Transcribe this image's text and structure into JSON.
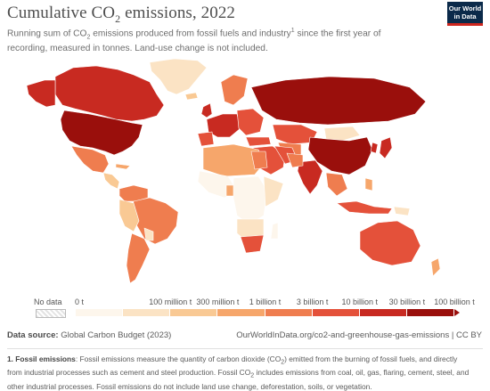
{
  "header": {
    "title_main": "Cumulative CO",
    "title_sub": "2",
    "title_rest": " emissions, 2022",
    "subtitle_a": "Running sum of CO",
    "subtitle_sub": "2",
    "subtitle_b": " emissions produced from fossil fuels and industry",
    "subtitle_sup": "1",
    "subtitle_c": " since the first year of recording, measured in tonnes. Land-use change is not included."
  },
  "logo": {
    "line1": "Our World",
    "line2": "in Data"
  },
  "legend": {
    "no_data_label": "No data",
    "ticks": [
      {
        "label": "0 t",
        "position": 0
      },
      {
        "label": "100 million t",
        "position": 1
      },
      {
        "label": "300 million t",
        "position": 2
      },
      {
        "label": "1 billion t",
        "position": 3
      },
      {
        "label": "3 billion t",
        "position": 4
      },
      {
        "label": "10 billion t",
        "position": 5
      },
      {
        "label": "30 billion t",
        "position": 6
      },
      {
        "label": "100 billion t",
        "position": 7
      }
    ],
    "colors": [
      "#fdf6ec",
      "#fbe3c4",
      "#f9c994",
      "#f6a66b",
      "#ef7d4f",
      "#e4513a",
      "#c82a21",
      "#9a0f0c"
    ]
  },
  "source": {
    "label": "Data source:",
    "value": "Global Carbon Budget (2023)",
    "url": "OurWorldInData.org/co2-and-greenhouse-gas-emissions | CC BY"
  },
  "footnote": {
    "heading": "1. Fossil emissions",
    "text_a": ": Fossil emissions measure the quantity of carbon dioxide (CO",
    "sub_a": "2",
    "text_b": ") emitted from the burning of fossil fuels, and directly from industrial processes such as cement and steel production. Fossil CO",
    "sub_b": "2",
    "text_c": " includes emissions from coal, oil, gas, flaring, cement, steel, and other industrial processes. Fossil emissions do not include land use change, deforestation, soils, or vegetation."
  }
}
